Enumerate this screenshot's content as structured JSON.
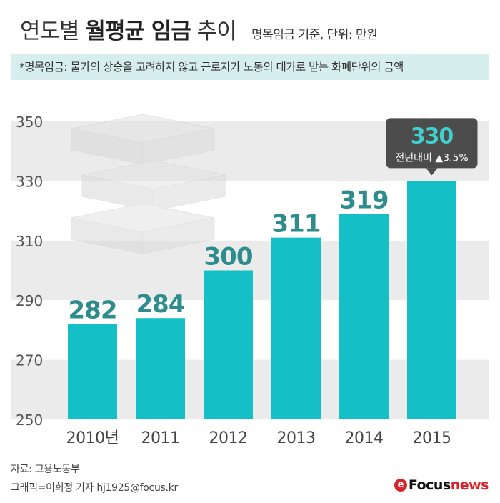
{
  "header": {
    "title_light": "연도별 ",
    "title_bold": "월평균 임금",
    "title_light2": " 추이",
    "subtitle": "명목임금 기준, 단위: 만원"
  },
  "note": "*명목임금: 물가의 상승을 고려하지 않고 근로자가 노동의 대가로 받는 화폐단위의 금액",
  "footer": {
    "source": "자료: 고용노동부",
    "credit": "그래픽=이희정 기자 hj1925@focus.kr",
    "logo_mark": "e",
    "logo_focus": "Focus",
    "logo_news": "news"
  },
  "chart_data": {
    "type": "bar",
    "categories": [
      "2010년",
      "2011",
      "2012",
      "2013",
      "2014",
      "2015"
    ],
    "values": [
      282,
      284,
      300,
      311,
      319,
      330
    ],
    "ylim": [
      250,
      350
    ],
    "yticks": [
      350,
      330,
      310,
      290,
      270,
      250
    ],
    "callout": {
      "value": "330",
      "change": "전년대비 ▲3.5%"
    },
    "colors": {
      "bar": "#14bfc5",
      "label": "#2e8c8c",
      "band": "#ebebeb",
      "callout_bg": "#4c4c4c",
      "callout_value": "#3fd0cf"
    }
  }
}
